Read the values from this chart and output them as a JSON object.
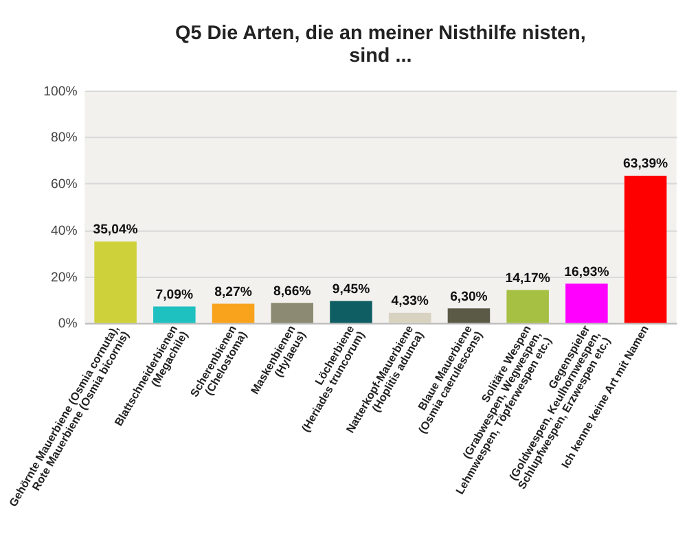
{
  "chart_data": {
    "type": "bar",
    "title": "Q5 Die Arten, die an meiner Nisthilfe nisten, sind ...",
    "categories": [
      "Gehörnte Mauerbiene (Osmia cornuta),\nRote Mauerbiene (Osmia bicornis)",
      "Blattschneiderbienen\n(Megachile)",
      "Scherenbienen\n(Chelostoma)",
      "Maskenbienen\n(Hylaeus)",
      "Löcherbiene\n(Heriades truncorum)",
      "Natterkopf-Mauerbiene\n(Hoplitis adunca)",
      "Blaue Mauerbiene\n(Osmia caerulescens)",
      "Solitäre Wespen\n(Grabwespen, Wegwespen,\nLehmwespen, Töpferwespen etc.)",
      "Gegenspieler\n(Goldwespen, Keulhornwespen,\nSchlupfwespen, Erzwespen etc.)",
      "Ich kenne keine Art mit Namen"
    ],
    "values": [
      35.04,
      7.09,
      8.27,
      8.66,
      9.45,
      4.33,
      6.3,
      14.17,
      16.93,
      63.39
    ],
    "value_labels": [
      "35,04%",
      "7,09%",
      "8,27%",
      "8,66%",
      "9,45%",
      "4,33%",
      "6,30%",
      "14,17%",
      "16,93%",
      "63,39%"
    ],
    "colors": [
      "#cfd13a",
      "#1fc0c0",
      "#f9a21b",
      "#8c8a72",
      "#0e5e63",
      "#d8d2c0",
      "#5b5a47",
      "#a6c044",
      "#ff00ff",
      "#ff0000"
    ],
    "ylim": [
      0,
      100
    ],
    "yticks": [
      {
        "value": 0,
        "label": "0%"
      },
      {
        "value": 20,
        "label": "20%"
      },
      {
        "value": 40,
        "label": "40%"
      },
      {
        "value": 60,
        "label": "60%"
      },
      {
        "value": 80,
        "label": "80%"
      },
      {
        "value": 100,
        "label": "100%"
      }
    ],
    "grid": "y"
  }
}
